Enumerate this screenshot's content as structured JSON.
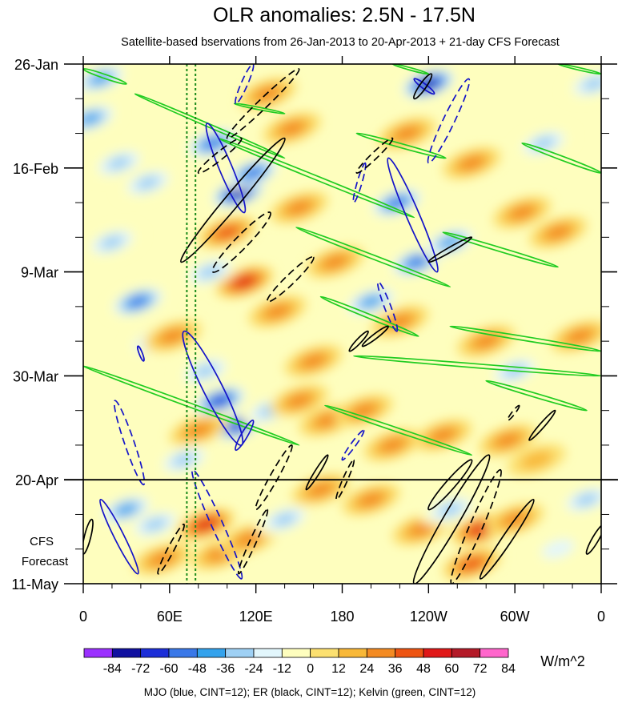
{
  "chart_data": {
    "type": "heatmap",
    "title": "OLR anomalies: 2.5N - 17.5N",
    "subtitle": "Satellite-based bservations from 26-Jan-2013 to 20-Apr-2013 + 21-day CFS Forecast",
    "x_ticks": [
      {
        "lon": 0,
        "label": "0"
      },
      {
        "lon": 60,
        "label": "60E"
      },
      {
        "lon": 120,
        "label": "120E"
      },
      {
        "lon": 180,
        "label": "180"
      },
      {
        "lon": 240,
        "label": "120W"
      },
      {
        "lon": 300,
        "label": "60W"
      },
      {
        "lon": 360,
        "label": "0"
      }
    ],
    "xlim": [
      0,
      360
    ],
    "y_ticks": [
      {
        "day": 0,
        "label": "26-Jan"
      },
      {
        "day": 21,
        "label": "16-Feb"
      },
      {
        "day": 42,
        "label": "9-Mar"
      },
      {
        "day": 63,
        "label": "30-Mar"
      },
      {
        "day": 84,
        "label": "20-Apr"
      },
      {
        "day": 105,
        "label": "11-May"
      }
    ],
    "ylim_days": [
      0,
      105
    ],
    "observation_end_day": 84,
    "forecast_label_lines": [
      "CFS",
      "Forecast"
    ],
    "reference_longitudes": [
      72,
      78
    ],
    "colorbar": {
      "levels": [
        -84,
        -72,
        -60,
        -48,
        -36,
        -24,
        -12,
        0,
        12,
        24,
        36,
        48,
        60,
        72,
        84
      ],
      "labels": [
        "-84",
        "-72",
        "-60",
        "-48",
        "-36",
        "-24",
        "-12",
        "0",
        "12",
        "24",
        "36",
        "48",
        "60",
        "72",
        "84"
      ],
      "colors": [
        "#9b30ff",
        "#1010a0",
        "#1c2ed8",
        "#3a78e8",
        "#33a2ec",
        "#9ed0f4",
        "#e2f6fc",
        "#fefebe",
        "#fce070",
        "#f8b838",
        "#f38a22",
        "#ee5412",
        "#e01818",
        "#b41a28",
        "#ff66cc"
      ],
      "units": "W/m^2"
    },
    "contour_legend": "MJO (blue, CINT=12); ER (black, CINT=12); Kelvin (green, CINT=12)",
    "contour_colors": {
      "MJO": "#1414c8",
      "ER": "#000000",
      "Kelvin": "#22cc22"
    },
    "anomaly_blobs": [
      {
        "lon": 12,
        "day": 3,
        "val": -50
      },
      {
        "lon": 5,
        "day": 11,
        "val": -45
      },
      {
        "lon": 25,
        "day": 20,
        "val": -40
      },
      {
        "lon": 45,
        "day": 24,
        "val": -35
      },
      {
        "lon": 20,
        "day": 36,
        "val": -40
      },
      {
        "lon": 38,
        "day": 48,
        "val": -55
      },
      {
        "lon": 50,
        "day": 56,
        "val": -35
      },
      {
        "lon": 62,
        "day": 55,
        "val": 35
      },
      {
        "lon": 90,
        "day": 16,
        "val": -55
      },
      {
        "lon": 108,
        "day": 26,
        "val": -82
      },
      {
        "lon": 118,
        "day": 22,
        "val": -65
      },
      {
        "lon": 100,
        "day": 34,
        "val": 50
      },
      {
        "lon": 112,
        "day": 44,
        "val": 55
      },
      {
        "lon": 88,
        "day": 42,
        "val": -40
      },
      {
        "lon": 128,
        "day": 6,
        "val": 30
      },
      {
        "lon": 145,
        "day": 13,
        "val": 35
      },
      {
        "lon": 150,
        "day": 29,
        "val": 35
      },
      {
        "lon": 135,
        "day": 50,
        "val": 40
      },
      {
        "lon": 160,
        "day": 60,
        "val": 30
      },
      {
        "lon": 175,
        "day": 40,
        "val": 30
      },
      {
        "lon": 200,
        "day": 48,
        "val": -50
      },
      {
        "lon": 220,
        "day": 52,
        "val": 30
      },
      {
        "lon": 240,
        "day": 4,
        "val": -80
      },
      {
        "lon": 225,
        "day": 14,
        "val": 30
      },
      {
        "lon": 218,
        "day": 28,
        "val": -55
      },
      {
        "lon": 232,
        "day": 40,
        "val": -65
      },
      {
        "lon": 255,
        "day": 36,
        "val": -50
      },
      {
        "lon": 270,
        "day": 20,
        "val": 30
      },
      {
        "lon": 305,
        "day": 30,
        "val": 30
      },
      {
        "lon": 320,
        "day": 16,
        "val": -40
      },
      {
        "lon": 330,
        "day": 34,
        "val": 35
      },
      {
        "lon": 355,
        "day": 4,
        "val": -35
      },
      {
        "lon": 345,
        "day": 55,
        "val": 30
      },
      {
        "lon": 300,
        "day": 62,
        "val": -35
      },
      {
        "lon": 280,
        "day": 56,
        "val": 32
      },
      {
        "lon": 95,
        "day": 68,
        "val": -70
      },
      {
        "lon": 108,
        "day": 73,
        "val": -75
      },
      {
        "lon": 85,
        "day": 62,
        "val": -40
      },
      {
        "lon": 80,
        "day": 74,
        "val": 40
      },
      {
        "lon": 70,
        "day": 80,
        "val": -40
      },
      {
        "lon": 130,
        "day": 70,
        "val": -40
      },
      {
        "lon": 150,
        "day": 68,
        "val": 30
      },
      {
        "lon": 170,
        "day": 72,
        "val": 30
      },
      {
        "lon": 195,
        "day": 70,
        "val": 35
      },
      {
        "lon": 215,
        "day": 77,
        "val": 40
      },
      {
        "lon": 250,
        "day": 75,
        "val": 35
      },
      {
        "lon": 295,
        "day": 76,
        "val": 30
      },
      {
        "lon": 315,
        "day": 80,
        "val": 28
      },
      {
        "lon": 30,
        "day": 90,
        "val": -45
      },
      {
        "lon": 50,
        "day": 93,
        "val": -40
      },
      {
        "lon": 55,
        "day": 100,
        "val": 40
      },
      {
        "lon": 85,
        "day": 93,
        "val": 60
      },
      {
        "lon": 95,
        "day": 99,
        "val": 35
      },
      {
        "lon": 115,
        "day": 96,
        "val": 35
      },
      {
        "lon": 140,
        "day": 92,
        "val": -30
      },
      {
        "lon": 165,
        "day": 86,
        "val": 35
      },
      {
        "lon": 200,
        "day": 88,
        "val": 30
      },
      {
        "lon": 235,
        "day": 94,
        "val": 35
      },
      {
        "lon": 255,
        "day": 90,
        "val": -30
      },
      {
        "lon": 276,
        "day": 94,
        "val": 60
      },
      {
        "lon": 270,
        "day": 101,
        "val": 45
      },
      {
        "lon": 300,
        "day": 92,
        "val": 30
      },
      {
        "lon": 330,
        "day": 98,
        "val": -25
      },
      {
        "lon": 350,
        "day": 88,
        "val": -30
      }
    ],
    "mjo_contours": [
      {
        "lon1": 86,
        "day1": 12,
        "lon2": 112,
        "day2": 30,
        "width": 8,
        "dash": false
      },
      {
        "lon1": 268,
        "day1": 3,
        "lon2": 240,
        "day2": 20,
        "width": 7,
        "dash": true
      },
      {
        "lon1": 212,
        "day1": 19,
        "lon2": 246,
        "day2": 42,
        "width": 8,
        "dash": false
      },
      {
        "lon1": 205,
        "day1": 44,
        "lon2": 218,
        "day2": 54,
        "width": 4,
        "dash": true
      },
      {
        "lon1": 70,
        "day1": 54,
        "lon2": 110,
        "day2": 77,
        "width": 12,
        "dash": false
      },
      {
        "lon1": 22,
        "day1": 68,
        "lon2": 42,
        "day2": 85,
        "width": 6,
        "dash": true
      },
      {
        "lon1": 12,
        "day1": 88,
        "lon2": 38,
        "day2": 103,
        "width": 6,
        "dash": false
      },
      {
        "lon1": 76,
        "day1": 82,
        "lon2": 110,
        "day2": 104,
        "width": 7,
        "dash": true
      },
      {
        "lon1": 106,
        "day1": 78,
        "lon2": 118,
        "day2": 72,
        "width": 4,
        "dash": false
      },
      {
        "lon1": 180,
        "day1": 80,
        "lon2": 195,
        "day2": 74,
        "width": 3,
        "dash": true
      },
      {
        "lon1": 118,
        "day1": 0,
        "lon2": 106,
        "day2": 8,
        "width": 4,
        "dash": true
      },
      {
        "lon1": 188,
        "day1": 28,
        "lon2": 196,
        "day2": 20,
        "width": 3,
        "dash": true
      },
      {
        "lon1": 230,
        "day1": 3,
        "lon2": 244,
        "day2": 6,
        "width": 3,
        "dash": false
      },
      {
        "lon1": 38,
        "day1": 57,
        "lon2": 42,
        "day2": 60,
        "width": 2,
        "dash": false
      }
    ],
    "er_contours": [
      {
        "lon1": 68,
        "day1": 40,
        "lon2": 140,
        "day2": 15,
        "width": 9,
        "dash": false
      },
      {
        "lon1": 80,
        "day1": 22,
        "lon2": 110,
        "day2": 15,
        "width": 5,
        "dash": true
      },
      {
        "lon1": 90,
        "day1": 42,
        "lon2": 130,
        "day2": 30,
        "width": 8,
        "dash": true
      },
      {
        "lon1": 128,
        "day1": 48,
        "lon2": 160,
        "day2": 39,
        "width": 6,
        "dash": true
      },
      {
        "lon1": 100,
        "day1": 15,
        "lon2": 150,
        "day2": 1,
        "width": 6,
        "dash": true
      },
      {
        "lon1": 190,
        "day1": 22,
        "lon2": 215,
        "day2": 15,
        "width": 4,
        "dash": true
      },
      {
        "lon1": 240,
        "day1": 40,
        "lon2": 270,
        "day2": 35,
        "width": 3,
        "dash": false
      },
      {
        "lon1": 185,
        "day1": 58,
        "lon2": 198,
        "day2": 54,
        "width": 3,
        "dash": false
      },
      {
        "lon1": 310,
        "day1": 76,
        "lon2": 328,
        "day2": 70,
        "width": 3,
        "dash": false
      },
      {
        "lon1": 295,
        "day1": 72,
        "lon2": 303,
        "day2": 69,
        "width": 2,
        "dash": true
      },
      {
        "lon1": 52,
        "day1": 103,
        "lon2": 70,
        "day2": 93,
        "width": 4,
        "dash": true
      },
      {
        "lon1": 108,
        "day1": 103,
        "lon2": 128,
        "day2": 90,
        "width": 4,
        "dash": true
      },
      {
        "lon1": 120,
        "day1": 90,
        "lon2": 145,
        "day2": 77,
        "width": 5,
        "dash": true
      },
      {
        "lon1": 155,
        "day1": 86,
        "lon2": 170,
        "day2": 79,
        "width": 3,
        "dash": false
      },
      {
        "lon1": 176,
        "day1": 88,
        "lon2": 188,
        "day2": 80,
        "width": 3,
        "dash": true
      },
      {
        "lon1": 230,
        "day1": 105,
        "lon2": 282,
        "day2": 79,
        "width": 10,
        "dash": false
      },
      {
        "lon1": 240,
        "day1": 90,
        "lon2": 270,
        "day2": 80,
        "width": 6,
        "dash": false
      },
      {
        "lon1": 256,
        "day1": 105,
        "lon2": 290,
        "day2": 82,
        "width": 8,
        "dash": true
      },
      {
        "lon1": 276,
        "day1": 104,
        "lon2": 313,
        "day2": 88,
        "width": 6,
        "dash": false
      },
      {
        "lon1": 350,
        "day1": 99,
        "lon2": 362,
        "day2": 93,
        "width": 4,
        "dash": false
      },
      {
        "lon1": 0,
        "day1": 99,
        "lon2": 6,
        "day2": 92,
        "width": 4,
        "dash": false
      },
      {
        "lon1": 230,
        "day1": 7,
        "lon2": 242,
        "day2": 2,
        "width": 4,
        "dash": false
      },
      {
        "lon1": 194,
        "day1": 57,
        "lon2": 212,
        "day2": 53,
        "width": 3,
        "dash": false
      }
    ],
    "kelvin_bands": [
      {
        "lon1": 0,
        "day1": 1,
        "lon2": 30,
        "day2": 4,
        "width": 2.5
      },
      {
        "lon1": 36,
        "day1": 6,
        "lon2": 140,
        "day2": 19,
        "width": 2
      },
      {
        "lon1": 94,
        "day1": 15,
        "lon2": 230,
        "day2": 31,
        "width": 2.5
      },
      {
        "lon1": 190,
        "day1": 14,
        "lon2": 252,
        "day2": 19,
        "width": 2.5
      },
      {
        "lon1": 305,
        "day1": 16,
        "lon2": 360,
        "day2": 22,
        "width": 2.5
      },
      {
        "lon1": 148,
        "day1": 33,
        "lon2": 255,
        "day2": 45,
        "width": 2.5
      },
      {
        "lon1": 250,
        "day1": 34,
        "lon2": 330,
        "day2": 41,
        "width": 2.5
      },
      {
        "lon1": 165,
        "day1": 47,
        "lon2": 233,
        "day2": 55,
        "width": 2.5
      },
      {
        "lon1": 255,
        "day1": 53,
        "lon2": 360,
        "day2": 58,
        "width": 2.5
      },
      {
        "lon1": 188,
        "day1": 59,
        "lon2": 360,
        "day2": 63,
        "width": 2.5
      },
      {
        "lon1": 0,
        "day1": 61,
        "lon2": 150,
        "day2": 77,
        "width": 2.5
      },
      {
        "lon1": 168,
        "day1": 69,
        "lon2": 270,
        "day2": 79,
        "width": 2.5
      },
      {
        "lon1": 280,
        "day1": 64,
        "lon2": 350,
        "day2": 70,
        "width": 2.5
      },
      {
        "lon1": 105,
        "day1": 8,
        "lon2": 140,
        "day2": 10,
        "width": 1.5
      },
      {
        "lon1": 215,
        "day1": 0,
        "lon2": 240,
        "day2": 2,
        "width": 1.5
      },
      {
        "lon1": 330,
        "day1": 0,
        "lon2": 360,
        "day2": 2,
        "width": 1.5
      }
    ]
  }
}
